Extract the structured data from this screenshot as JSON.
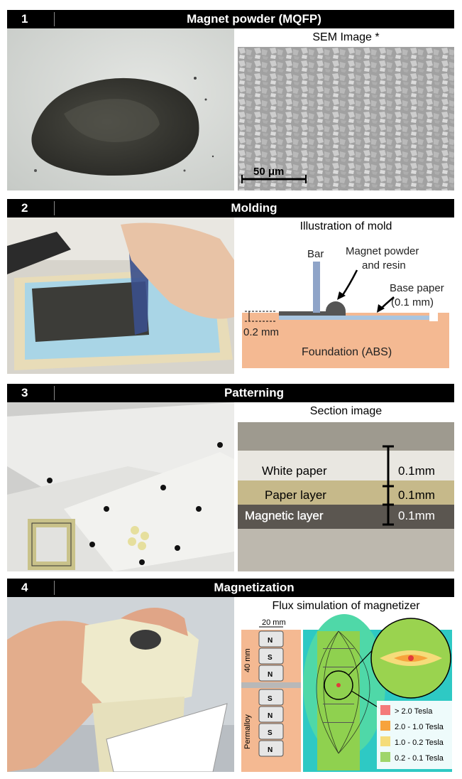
{
  "sections": [
    {
      "number": "1",
      "title": "Magnet powder (MQFP)",
      "caption": "SEM Image *"
    },
    {
      "number": "2",
      "title": "Molding",
      "caption": "Illustration of mold"
    },
    {
      "number": "3",
      "title": "Patterning",
      "caption": "Section image"
    },
    {
      "number": "4",
      "title": "Magnetization",
      "caption": "Flux simulation of magnetizer"
    }
  ],
  "sem": {
    "scale_label": "50 μm"
  },
  "mold": {
    "bar_label": "Bar",
    "powder_label_line1": "Magnet powder",
    "powder_label_line2": "and resin",
    "base_label_line1": "Base paper",
    "base_label_line2": "(0.1 mm)",
    "thickness_label": "0.2 mm",
    "foundation_label": "Foundation (ABS)"
  },
  "section_image": {
    "layers": [
      {
        "name": "White paper",
        "thickness": "0.1mm"
      },
      {
        "name": "Paper layer",
        "thickness": "0.1mm"
      },
      {
        "name": "Magnetic layer",
        "thickness": "0.1mm"
      }
    ]
  },
  "flux": {
    "width_label": "20 mm",
    "height_label": "40 mm",
    "permalloy_label": "Permalloy",
    "pole_n": "N",
    "pole_s": "S",
    "legend": [
      {
        "label": "> 2.0 Tesla",
        "color": "#f47a7a"
      },
      {
        "label": "2.0 - 1.0 Tesla",
        "color": "#f7a33c"
      },
      {
        "label": "1.0 - 0.2 Tesla",
        "color": "#f5dc7a"
      },
      {
        "label": "0.2 - 0.1 Tesla",
        "color": "#9fd56b"
      }
    ]
  }
}
